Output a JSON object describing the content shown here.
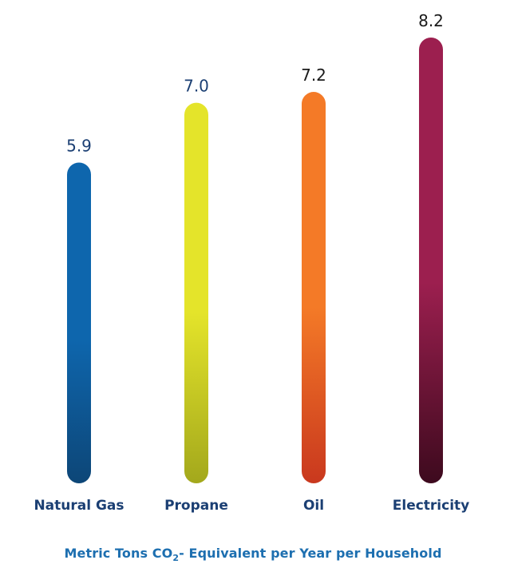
{
  "chart_data": {
    "type": "bar",
    "categories": [
      "Natural Gas",
      "Propane",
      "Oil",
      "Electricity"
    ],
    "values": [
      5.9,
      7.0,
      7.2,
      8.2
    ],
    "value_labels": [
      "5.9",
      "7.0",
      "7.2",
      "8.2"
    ],
    "ylim": [
      0,
      8.2
    ],
    "grid": false,
    "legend": "none",
    "bar_colors": [
      {
        "top": "#0e66ad",
        "bottom": "#0d4677"
      },
      {
        "top": "#e4e42a",
        "bottom": "#a3a81c"
      },
      {
        "top": "#f47a27",
        "bottom": "#c9381e"
      },
      {
        "top": "#9c1f4f",
        "bottom": "#3d0a1e"
      }
    ],
    "value_label_colors": [
      "#1b3f73",
      "#1b3f73",
      "#1a1a1a",
      "#1a1a1a"
    ],
    "category_label_color": "#1b3f73",
    "caption": {
      "prefix": "Metric Tons CO",
      "subscript": "2",
      "suffix": "- Equivalent per Year per Household"
    }
  }
}
